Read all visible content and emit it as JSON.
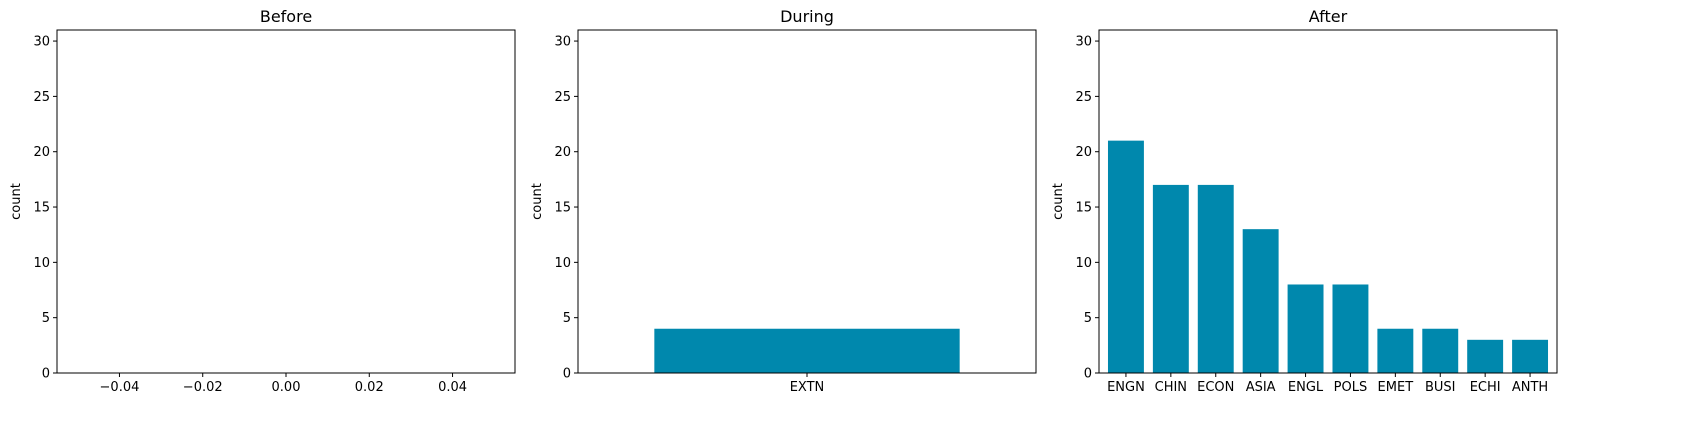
{
  "chart_data": [
    {
      "type": "bar",
      "title": "Before",
      "xlabel": "",
      "ylabel": "count",
      "ylim": [
        0,
        31
      ],
      "yticks": [
        0,
        5,
        10,
        15,
        20,
        25,
        30
      ],
      "xlim": [
        -0.055,
        0.055
      ],
      "xticks": [
        "-0.04",
        "-0.02",
        "0.00",
        "0.02",
        "0.04"
      ],
      "categories": [],
      "values": [],
      "bar_color": "#0088ad"
    },
    {
      "type": "bar",
      "title": "During",
      "xlabel": "",
      "ylabel": "count",
      "ylim": [
        0,
        31
      ],
      "yticks": [
        0,
        5,
        10,
        15,
        20,
        25,
        30
      ],
      "categories": [
        "EXTN"
      ],
      "values": [
        4
      ],
      "bar_color": "#0088ad"
    },
    {
      "type": "bar",
      "title": "After",
      "xlabel": "",
      "ylabel": "count",
      "ylim": [
        0,
        31
      ],
      "yticks": [
        0,
        5,
        10,
        15,
        20,
        25,
        30
      ],
      "categories": [
        "ENGN",
        "CHIN",
        "ECON",
        "ASIA",
        "ENGL",
        "POLS",
        "EMET",
        "BUSI",
        "ECHI",
        "ANTH"
      ],
      "values": [
        21,
        17,
        17,
        13,
        8,
        8,
        4,
        4,
        3,
        3
      ],
      "bar_color": "#0088ad"
    }
  ]
}
